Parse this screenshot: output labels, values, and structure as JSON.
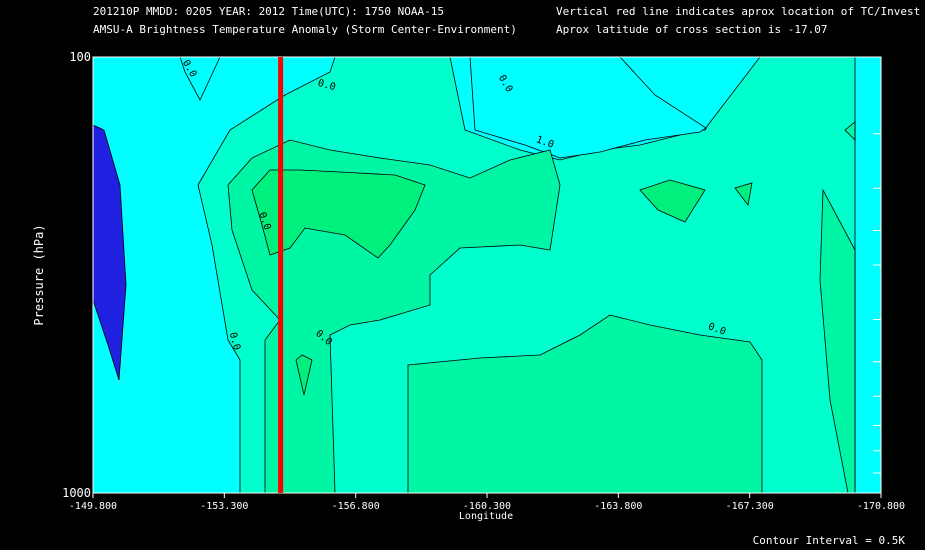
{
  "header": {
    "line1_left": "201210P  MMDD: 0205 YEAR: 2012 Time(UTC): 1750 NOAA-15",
    "line2_left": "AMSU-A Brightness Temperature Anomaly (Storm Center-Environment)",
    "line1_right": "Vertical red line indicates aprox location of TC/Invest",
    "line2_right": "Aprox latitude of cross section is -17.07"
  },
  "footer": {
    "contour_interval": "Contour Interval = 0.5K"
  },
  "colors": {
    "background": "#000000",
    "level_blue": "#2020e0",
    "level_cyan": "#00ffff",
    "level_lightgreen": "#00ffcc",
    "level_midgreen": "#00f5a5",
    "level_green": "#00f07e",
    "level_bright": "#00e860",
    "storm_line": "#ff0000"
  },
  "chart_data": {
    "type": "heatmap",
    "xlabel": "Longitude",
    "ylabel": "Pressure (hPa)",
    "xlim": [
      -149.8,
      -170.8
    ],
    "ylim": [
      1000,
      100
    ],
    "y_scale": "log",
    "x_ticks": [
      "-149.800",
      "-153.300",
      "-156.800",
      "-160.300",
      "-163.800",
      "-167.300",
      "-170.800"
    ],
    "y_ticks": [
      "100",
      "1000"
    ],
    "storm_longitude": -154.8,
    "contour_labels": [
      "0.0",
      "0.0",
      "0.0",
      "1.0",
      "0.0",
      "0.0",
      "0.0",
      "0.0"
    ],
    "legend_text": "Contour Interval = 0.5K"
  }
}
